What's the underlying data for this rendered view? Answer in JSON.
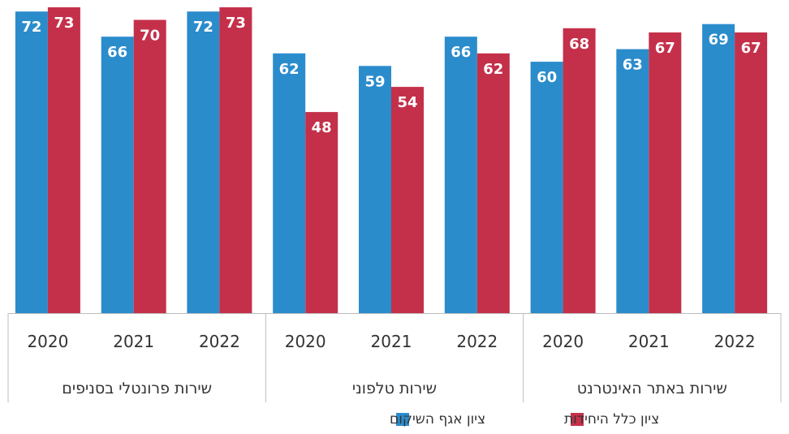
{
  "chart_data": {
    "type": "bar",
    "direction": "rtl",
    "groups": [
      {
        "label": "שירות באתר האינטרנט",
        "years": [
          "2022",
          "2021",
          "2020"
        ]
      },
      {
        "label": "שירות טלפוני",
        "years": [
          "2022",
          "2021",
          "2020"
        ]
      },
      {
        "label": "שירות פרונטלי בסניפים",
        "years": [
          "2022",
          "2021",
          "2020"
        ]
      }
    ],
    "categories": [
      "2022",
      "2021",
      "2020",
      "2022",
      "2021",
      "2020",
      "2022",
      "2021",
      "2020"
    ],
    "series": [
      {
        "name": "ציון אגף השיקום",
        "color": "#2b8ccc",
        "values": [
          69,
          63,
          60,
          66,
          59,
          62,
          72,
          66,
          72
        ]
      },
      {
        "name": "ציון כלל היחידות",
        "color": "#c4304a",
        "values": [
          67,
          67,
          68,
          62,
          54,
          48,
          73,
          70,
          73
        ]
      }
    ],
    "ylim": [
      0,
      73
    ],
    "legend_position": "bottom"
  }
}
